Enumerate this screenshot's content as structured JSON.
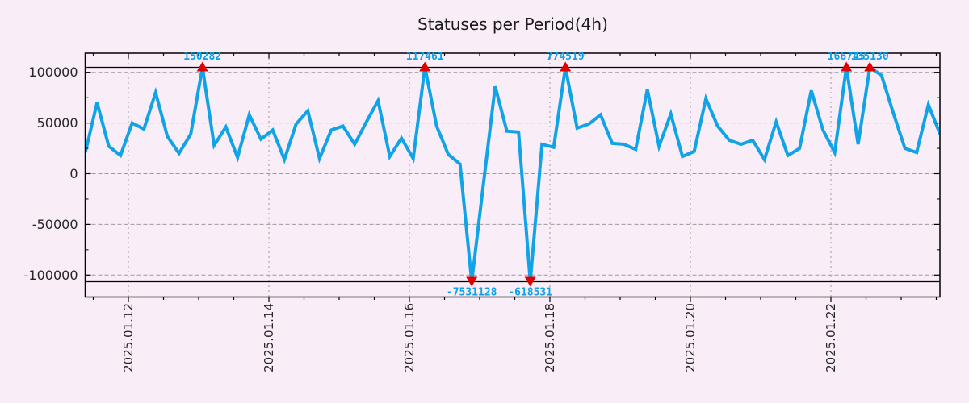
{
  "title": "Statuses per Period(4h)",
  "colors": {
    "background": "#f9edf8",
    "line": "#10a3e8",
    "value_label": "#0aa2e8",
    "marker": "#e00000",
    "grid": "#9c9c9c",
    "axis": "#000000",
    "axis_text": "#262626",
    "title_text": "#1b1b1b"
  },
  "chart_data": {
    "type": "line",
    "title": "Statuses per Period(4h)",
    "period_per_point": "4h",
    "grid": true,
    "legend": false,
    "y_axis": {
      "ticks": [
        100000,
        50000,
        0,
        -50000,
        -100000
      ],
      "minor_ticks": [
        75000,
        25000,
        -25000,
        -75000
      ],
      "display_clip_value": 104500
    },
    "x_axis": {
      "tick_labels": [
        "2025.01.12",
        "2025.01.14",
        "2025.01.16",
        "2025.01.18",
        "2025.01.20",
        "2025.01.22"
      ],
      "tick_indices": [
        3.676,
        15.676,
        27.676,
        39.676,
        51.676,
        63.676
      ],
      "minor_tick_every_indices": 3,
      "points_per_day": 6
    },
    "values": [
      21000,
      70000,
      27000,
      18000,
      50000,
      44000,
      80000,
      37000,
      20000,
      39000,
      150282,
      28000,
      46000,
      16000,
      58000,
      34000,
      43000,
      14000,
      49000,
      62000,
      15000,
      43000,
      47000,
      29000,
      51000,
      72000,
      17000,
      35000,
      15000,
      117461,
      47000,
      19000,
      9500,
      -7531128,
      -10000,
      86000,
      42000,
      41000,
      -618531,
      29000,
      26000,
      774519,
      45000,
      49000,
      58000,
      30000,
      29000,
      24000,
      83000,
      27000,
      59000,
      17000,
      22000,
      74000,
      47000,
      33000,
      29000,
      33000,
      14000,
      51000,
      18000,
      25000,
      82000,
      43000,
      21000,
      166745,
      29000,
      135130,
      97000,
      60000,
      25000,
      21000,
      68000,
      39000
    ],
    "annotations": [
      {
        "index": 10,
        "label": "150282",
        "direction": "up"
      },
      {
        "index": 29,
        "label": "117461",
        "direction": "up"
      },
      {
        "index": 33,
        "label": "-7531128",
        "direction": "down"
      },
      {
        "index": 38,
        "label": "-618531",
        "direction": "down"
      },
      {
        "index": 41,
        "label": "774519",
        "direction": "up"
      },
      {
        "index": 65,
        "label": "166745",
        "direction": "up"
      },
      {
        "index": 67,
        "label": "135130",
        "direction": "up"
      }
    ]
  }
}
